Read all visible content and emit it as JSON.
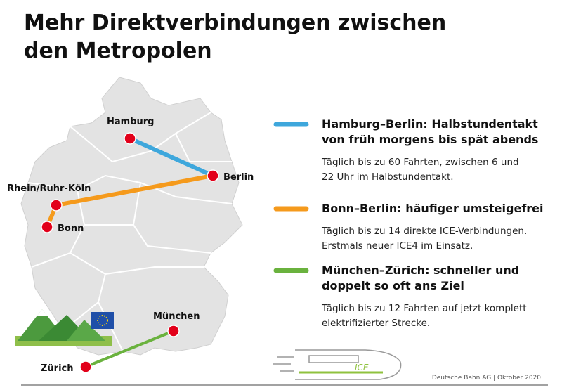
{
  "header": {
    "title_lines": [
      "Mehr Direktverbindungen zwischen",
      "den Metropolen"
    ]
  },
  "cities": [
    {
      "label": "Hamburg"
    },
    {
      "label": "Berlin"
    },
    {
      "label": "Rhein/Ruhr-Köln"
    },
    {
      "label": "Bonn"
    },
    {
      "label": "München"
    },
    {
      "label": "Zürich"
    }
  ],
  "legend": [
    {
      "heading_lines": [
        "Hamburg–Berlin: Halbstundentakt",
        "von früh morgens bis spät abends"
      ],
      "text_lines": [
        "Täglich bis zu 60 Fahrten, zwischen 6 und",
        "22 Uhr im Halbstundentakt."
      ]
    },
    {
      "heading_lines": [
        "Bonn–Berlin: häufiger umsteigefrei"
      ],
      "text_lines": [
        "Täglich bis zu 14 direkte ICE-Verbindungen.",
        "Erstmals neuer ICE4 im Einsatz."
      ]
    },
    {
      "heading_lines": [
        "München–Zürich: schneller und",
        "doppelt so oft ans Ziel"
      ],
      "text_lines": [
        "Täglich bis zu 12 Fahrten auf jetzt komplett",
        "elektrifizierter Strecke."
      ]
    }
  ],
  "train_label": "ICE",
  "footer": {
    "source": "Deutsche Bahn AG | Oktober 2020"
  }
}
